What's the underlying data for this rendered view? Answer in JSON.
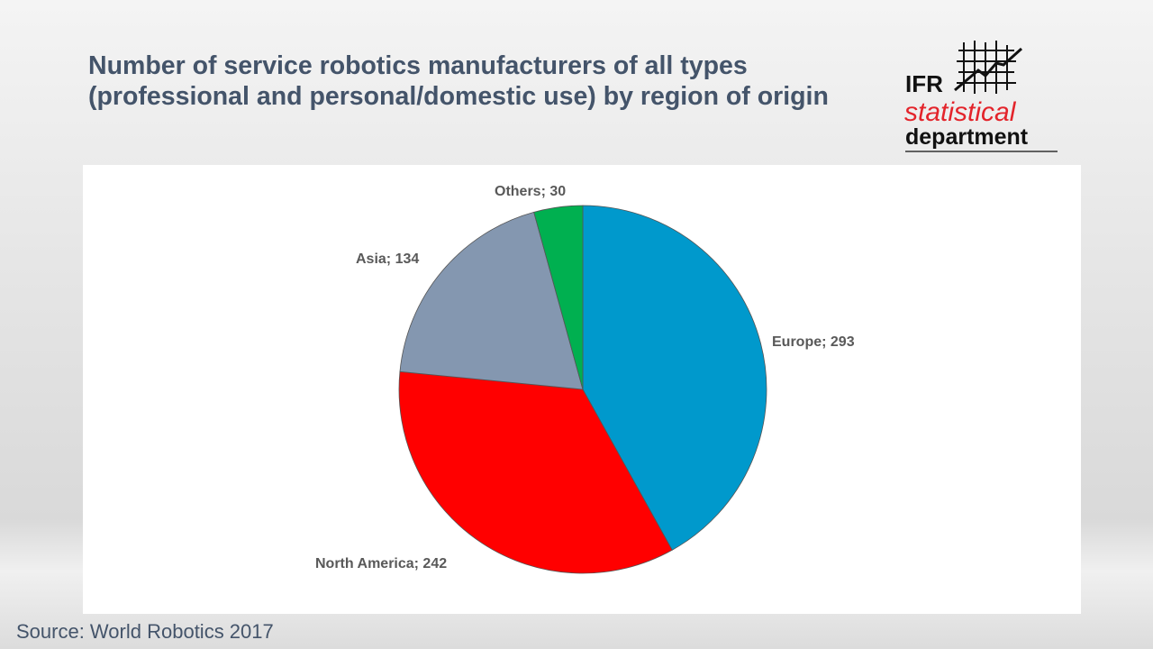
{
  "title": "Number of service robotics manufacturers of all types (professional and personal/domestic use) by region of origin",
  "logo": {
    "line1": "IFR",
    "line2": "statistical",
    "line3": "department"
  },
  "source": "Source: World Robotics 2017",
  "chart_data": {
    "type": "pie",
    "categories": [
      "Europe",
      "North America",
      "Asia",
      "Others"
    ],
    "values": [
      293,
      242,
      134,
      30
    ],
    "labels": [
      "Europe; 293",
      "North America; 242",
      "Asia; 134",
      "Others; 30"
    ],
    "colors": [
      "#0099cc",
      "#ff0000",
      "#8497b0",
      "#00b050"
    ],
    "start": "12 o'clock, clockwise",
    "legend": "none"
  }
}
